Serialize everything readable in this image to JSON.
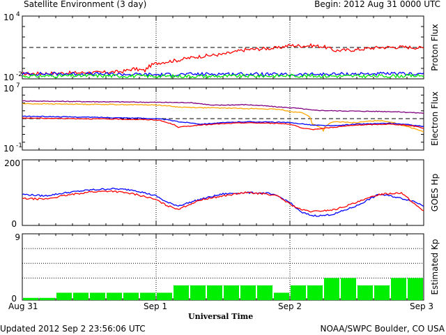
{
  "header": {
    "title": "Satellite Environment (3 day)",
    "begin": "Begin:  2012 Aug 31 0000 UTC"
  },
  "footer": {
    "updated": "Updated 2012 Sep  2 23:56:06 UTC",
    "credit": "NOAA/SWPC Boulder, CO USA"
  },
  "chart_data": [
    {
      "panel": "proton",
      "type": "line",
      "ylabel": "Proton Flux",
      "yscale": "log",
      "ylim": [
        0.01,
        10000
      ],
      "tick_base": "10",
      "tick_exps": [
        "4",
        "-2"
      ],
      "threshold": 10,
      "series": [
        {
          "color": "#ff0000",
          "hours": [
            0,
            6,
            12,
            14,
            18,
            20,
            22,
            24,
            28,
            32,
            36,
            38,
            40,
            46,
            48,
            50,
            52,
            54,
            56,
            60,
            64,
            68,
            72
          ],
          "values": [
            0.03,
            0.035,
            0.04,
            0.04,
            0.05,
            0.09,
            0.06,
            0.3,
            0.6,
            1.4,
            2.2,
            3.5,
            6,
            9,
            16,
            14,
            15,
            12,
            5,
            6,
            10,
            11,
            9
          ]
        },
        {
          "color": "#0000ff",
          "hours": [
            0,
            12,
            24,
            36,
            48,
            60,
            72
          ],
          "values": [
            0.03,
            0.03,
            0.025,
            0.03,
            0.025,
            0.03,
            0.03
          ]
        },
        {
          "color": "#00ee00",
          "hours": [
            0,
            12,
            24,
            36,
            48,
            60,
            72
          ],
          "values": [
            0.018,
            0.02,
            0.018,
            0.018,
            0.02,
            0.018,
            0.02
          ]
        }
      ]
    },
    {
      "panel": "electron",
      "type": "line",
      "ylabel": "Electron Flux",
      "yscale": "log",
      "ylim": [
        0.1,
        10000000
      ],
      "tick_base": "10",
      "tick_exps": [
        "7",
        "-1"
      ],
      "threshold": 1000,
      "series": [
        {
          "color": "#800080",
          "hours": [
            0,
            10,
            20,
            24,
            30,
            34,
            40,
            46,
            48,
            52,
            56,
            60,
            66,
            70,
            72
          ],
          "values": [
            180000,
            150000,
            130000,
            120000,
            110000,
            50000,
            60000,
            30000,
            25000,
            12000,
            10000,
            9000,
            8000,
            6000,
            5000
          ]
        },
        {
          "color": "#ffa500",
          "hours": [
            0,
            10,
            20,
            24,
            28,
            32,
            40,
            46,
            48,
            50,
            52,
            54,
            56,
            60,
            64,
            68,
            70,
            72
          ],
          "values": [
            80000,
            70000,
            60000,
            55000,
            30000,
            25000,
            20000,
            15000,
            8000,
            6000,
            200,
            30,
            400,
            300,
            600,
            150,
            60,
            20
          ]
        },
        {
          "color": "#0000ff",
          "hours": [
            0,
            10,
            20,
            24,
            28,
            32,
            40,
            46,
            48,
            52,
            56,
            60,
            66,
            70,
            72
          ],
          "values": [
            2000,
            1600,
            1200,
            1000,
            400,
            200,
            400,
            350,
            300,
            150,
            120,
            200,
            250,
            150,
            100
          ]
        },
        {
          "color": "#ff0000",
          "hours": [
            0,
            10,
            20,
            24,
            26,
            28,
            32,
            40,
            46,
            48,
            50,
            52,
            56,
            60,
            66,
            70,
            72
          ],
          "values": [
            1200,
            1000,
            800,
            700,
            300,
            80,
            150,
            300,
            250,
            200,
            60,
            40,
            80,
            150,
            200,
            120,
            60
          ]
        }
      ]
    },
    {
      "panel": "hp",
      "type": "line",
      "ylabel": "GOES Hp",
      "yscale": "linear",
      "ylim": [
        0,
        200
      ],
      "yticks": [
        "200",
        "0"
      ],
      "series": [
        {
          "color": "#0000ff",
          "hours": [
            0,
            4,
            8,
            12,
            16,
            20,
            24,
            26,
            28,
            32,
            36,
            40,
            44,
            46,
            48,
            50,
            52,
            54,
            56,
            60,
            62,
            64,
            66,
            70,
            72
          ],
          "values": [
            95,
            90,
            100,
            108,
            112,
            108,
            90,
            70,
            60,
            80,
            96,
            100,
            98,
            88,
            70,
            40,
            30,
            30,
            35,
            60,
            78,
            95,
            90,
            75,
            60
          ]
        },
        {
          "color": "#ff0000",
          "hours": [
            0,
            4,
            8,
            12,
            16,
            20,
            22,
            24,
            26,
            28,
            32,
            36,
            40,
            44,
            46,
            48,
            50,
            52,
            56,
            60,
            64,
            68,
            70,
            72
          ],
          "values": [
            82,
            80,
            92,
            102,
            105,
            96,
            88,
            78,
            60,
            50,
            78,
            90,
            100,
            96,
            88,
            65,
            48,
            42,
            48,
            70,
            95,
            100,
            70,
            45
          ]
        }
      ]
    },
    {
      "panel": "kp",
      "type": "bar",
      "ylabel": "Estimated Kp",
      "ylim": [
        0,
        9
      ],
      "yticks": [
        "9",
        "0"
      ],
      "color": "#00ee00",
      "values": [
        0.3,
        0.3,
        1,
        1,
        1,
        1,
        1,
        1,
        1,
        2,
        2,
        2,
        2,
        2,
        2,
        1,
        2,
        2,
        3,
        3,
        2,
        2,
        3,
        3
      ]
    }
  ],
  "x_axis": {
    "label": "Universal Time",
    "ticks": [
      "Aug 31",
      "Sep 1",
      "Sep 2",
      "Sep 3"
    ],
    "range_hours": [
      0,
      72
    ]
  }
}
